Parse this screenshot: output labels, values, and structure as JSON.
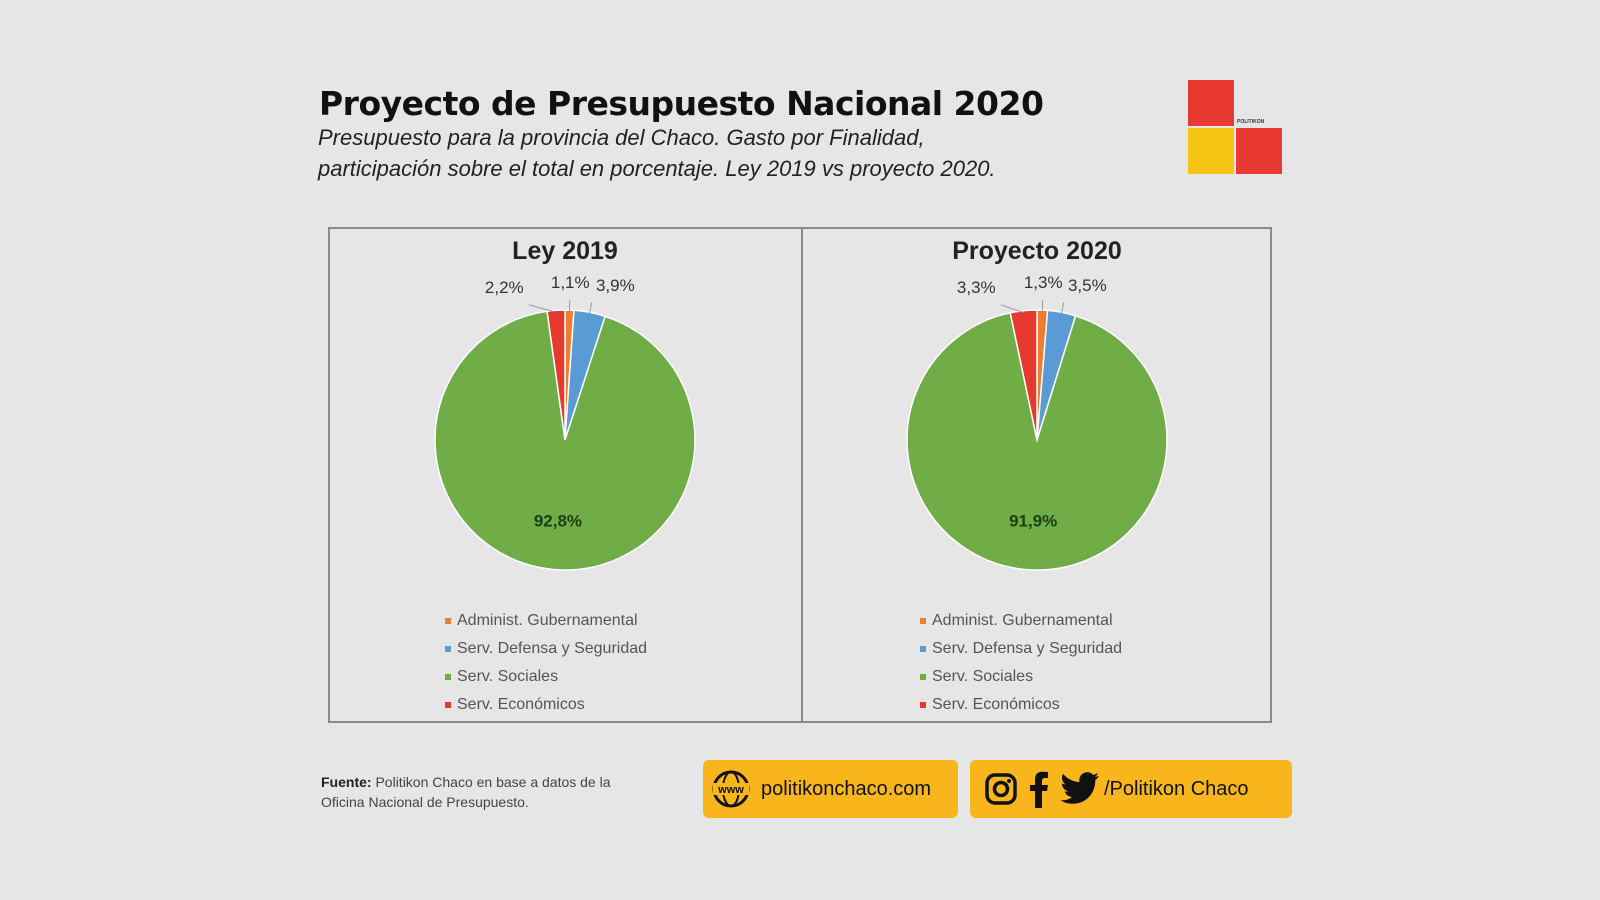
{
  "header": {
    "title": "Proyecto de Presupuesto Nacional 2020",
    "subtitle_line1": "Presupuesto para la provincia del Chaco. Gasto por Finalidad,",
    "subtitle_line2": "participación sobre el total en porcentaje. Ley 2019 vs proyecto 2020.",
    "logo_text": "POLITIKON"
  },
  "chart_data": [
    {
      "type": "pie",
      "title": "Ley 2019",
      "categories": [
        "Administ. Gubernamental",
        "Serv. Defensa y Seguridad",
        "Serv. Sociales",
        "Serv. Económicos"
      ],
      "values": [
        1.1,
        3.9,
        92.8,
        2.2
      ],
      "labels": [
        "1,1%",
        "3,9%",
        "92,8%",
        "2,2%"
      ],
      "colors": [
        "#ed7d31",
        "#5b9bd5",
        "#70ad47",
        "#e8392f"
      ],
      "legend_position": "bottom"
    },
    {
      "type": "pie",
      "title": "Proyecto 2020",
      "categories": [
        "Administ. Gubernamental",
        "Serv. Defensa y Seguridad",
        "Serv. Sociales",
        "Serv. Económicos"
      ],
      "values": [
        1.3,
        3.5,
        91.9,
        3.3
      ],
      "labels": [
        "1,3%",
        "3,5%",
        "91,9%",
        "3,3%"
      ],
      "colors": [
        "#ed7d31",
        "#5b9bd5",
        "#70ad47",
        "#e8392f"
      ],
      "legend_position": "bottom"
    }
  ],
  "footer": {
    "source_label": "Fuente:",
    "source_text": "Politikon Chaco en base a datos de la Oficina Nacional de Presupuesto.",
    "website_icon_text": "www",
    "website": "politikonchaco.com",
    "social_handle": "/Politikon Chaco",
    "icons": [
      "globe-icon",
      "instagram-icon",
      "facebook-icon",
      "twitter-icon"
    ],
    "pill_color": "#f8b51c"
  }
}
